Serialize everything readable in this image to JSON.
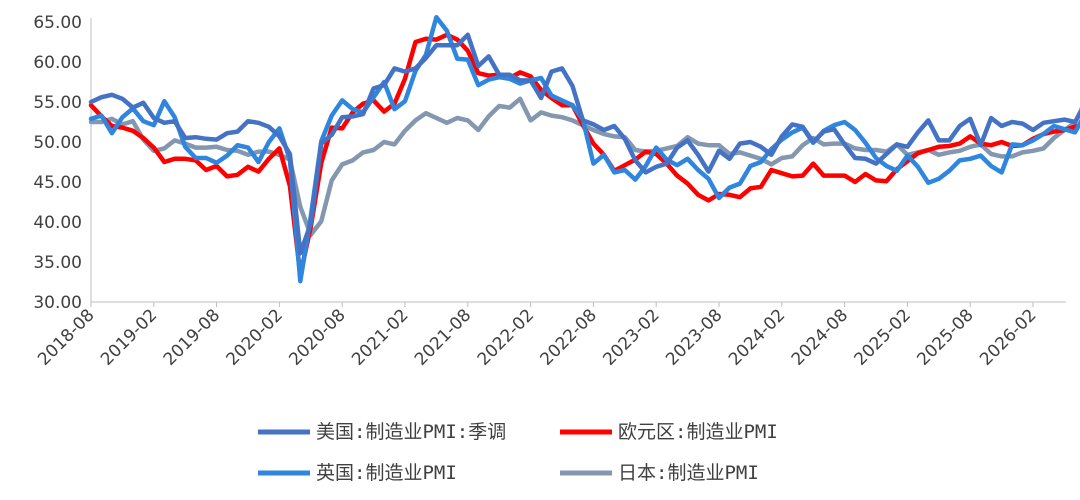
{
  "chart_data": {
    "type": "line",
    "ylim": [
      30,
      65
    ],
    "yticks": [
      "65.00",
      "60.00",
      "55.00",
      "50.00",
      "45.00",
      "40.00",
      "35.00",
      "30.00"
    ],
    "xticks": [
      "2018-08",
      "2019-02",
      "2019-08",
      "2020-02",
      "2020-08",
      "2021-02",
      "2021-08",
      "2022-02",
      "2022-08",
      "2023-02",
      "2023-08",
      "2024-02",
      "2024-08",
      "2025-02",
      "2025-08",
      "2026-02"
    ],
    "x_start": "2018-08",
    "grid": false,
    "legend_position": "bottom",
    "series": [
      {
        "name": "美国:制造业PMI:季调",
        "color": "#4472C4",
        "values": [
          55.0,
          55.6,
          55.9,
          55.4,
          54.3,
          54.9,
          53.0,
          52.4,
          52.6,
          50.5,
          50.6,
          50.4,
          50.3,
          51.1,
          51.3,
          52.6,
          52.4,
          51.9,
          50.7,
          48.5,
          36.1,
          39.8,
          49.8,
          50.9,
          53.1,
          53.2,
          53.5,
          56.7,
          57.1,
          59.2,
          58.8,
          59.2,
          60.5,
          62.1,
          62.1,
          62.1,
          63.4,
          59.5,
          60.7,
          58.4,
          58.4,
          57.7,
          57.7,
          55.5,
          58.8,
          59.2,
          57.0,
          52.7,
          52.2,
          51.5,
          52.0,
          50.4,
          47.7,
          46.2,
          46.9,
          47.3,
          49.3,
          50.2,
          48.4,
          46.3,
          48.9,
          47.9,
          49.8,
          50.0,
          49.4,
          48.4,
          50.7,
          52.2,
          51.9,
          50.0,
          51.3,
          51.6,
          49.7,
          48.0,
          47.9,
          47.3,
          48.5,
          49.7,
          49.4,
          51.2,
          52.7,
          50.2,
          50.2,
          52.0,
          52.9,
          49.6,
          53.0,
          52.0,
          52.5,
          52.3,
          51.5,
          52.4,
          52.6,
          52.8,
          52.5,
          54.6
        ]
      },
      {
        "name": "欧元区:制造业PMI",
        "color": "#FF0000",
        "values": [
          54.6,
          53.2,
          52.0,
          51.8,
          51.4,
          50.5,
          49.3,
          47.5,
          47.9,
          47.9,
          47.7,
          46.5,
          47.0,
          45.7,
          45.9,
          46.9,
          46.3,
          47.9,
          49.2,
          44.5,
          33.4,
          39.4,
          47.4,
          51.8,
          51.7,
          53.7,
          54.8,
          55.2,
          53.8,
          54.8,
          57.9,
          62.5,
          62.9,
          62.8,
          63.4,
          62.8,
          61.4,
          58.6,
          58.3,
          58.4,
          58.0,
          58.7,
          58.2,
          56.5,
          55.5,
          54.6,
          54.6,
          52.1,
          49.8,
          48.4,
          46.4,
          47.1,
          47.8,
          48.8,
          48.5,
          47.3,
          45.8,
          44.8,
          43.4,
          42.7,
          43.5,
          43.4,
          43.1,
          44.2,
          44.4,
          46.5,
          46.1,
          45.7,
          45.8,
          47.3,
          45.8,
          45.8,
          45.8,
          45.0,
          46.0,
          45.2,
          45.1,
          46.6,
          47.6,
          48.6,
          49.0,
          49.4,
          49.5,
          49.8,
          50.7,
          49.8,
          49.6,
          50.0,
          49.5,
          49.6,
          50.4,
          51.0,
          51.3,
          51.5,
          51.9,
          52.2
        ]
      },
      {
        "name": "英国:制造业PMI",
        "color": "#2E86DE",
        "values": [
          52.9,
          53.3,
          51.1,
          53.1,
          54.2,
          52.6,
          52.1,
          55.1,
          53.1,
          49.4,
          48.0,
          48.0,
          47.4,
          48.3,
          49.6,
          49.3,
          47.5,
          50.0,
          51.7,
          47.8,
          32.6,
          40.7,
          50.1,
          53.3,
          55.2,
          54.1,
          53.7,
          55.6,
          57.5,
          54.1,
          55.1,
          58.9,
          60.9,
          65.6,
          63.9,
          60.4,
          60.3,
          57.1,
          57.8,
          58.1,
          57.9,
          57.3,
          57.7,
          58.0,
          55.8,
          55.2,
          54.6,
          52.8,
          47.3,
          48.4,
          46.2,
          46.5,
          45.3,
          47.0,
          49.3,
          47.8,
          47.1,
          47.9,
          46.5,
          45.4,
          43.0,
          44.3,
          44.8,
          47.0,
          47.5,
          49.1,
          50.3,
          51.2,
          51.8,
          49.9,
          51.4,
          52.1,
          52.5,
          51.5,
          49.9,
          48.0,
          47.0,
          46.4,
          48.3,
          46.9,
          44.9,
          45.4,
          46.4,
          47.7,
          47.9,
          48.3,
          47.0,
          46.2,
          49.7,
          49.6,
          50.2,
          51.0,
          52.0,
          51.6,
          51.2,
          53.5
        ]
      },
      {
        "name": "日本:制造业PMI",
        "color": "#8497B0",
        "values": [
          52.5,
          52.5,
          52.9,
          52.2,
          52.6,
          50.3,
          48.9,
          49.2,
          50.2,
          49.8,
          49.3,
          49.3,
          49.4,
          49.0,
          48.9,
          48.4,
          48.8,
          48.8,
          48.4,
          47.8,
          41.9,
          38.4,
          40.1,
          45.2,
          47.2,
          47.7,
          48.7,
          49.0,
          50.0,
          49.7,
          51.4,
          52.7,
          53.6,
          53.0,
          52.4,
          53.0,
          52.7,
          51.5,
          53.2,
          54.5,
          54.3,
          55.4,
          52.7,
          53.7,
          53.3,
          53.1,
          52.7,
          52.1,
          51.5,
          51.0,
          50.7,
          50.6,
          49.0,
          48.8,
          48.9,
          49.2,
          49.5,
          50.6,
          49.8,
          49.6,
          49.6,
          48.5,
          48.7,
          48.3,
          47.9,
          47.2,
          48.0,
          48.2,
          49.6,
          50.5,
          49.7,
          49.8,
          49.8,
          49.2,
          49.0,
          49.0,
          48.8,
          49.7,
          48.4,
          48.7,
          49.0,
          48.4,
          48.7,
          48.9,
          49.4,
          49.7,
          48.5,
          48.2,
          48.2,
          48.7,
          48.9,
          49.2,
          50.5,
          51.5,
          52.4,
          55.1
        ]
      }
    ]
  }
}
